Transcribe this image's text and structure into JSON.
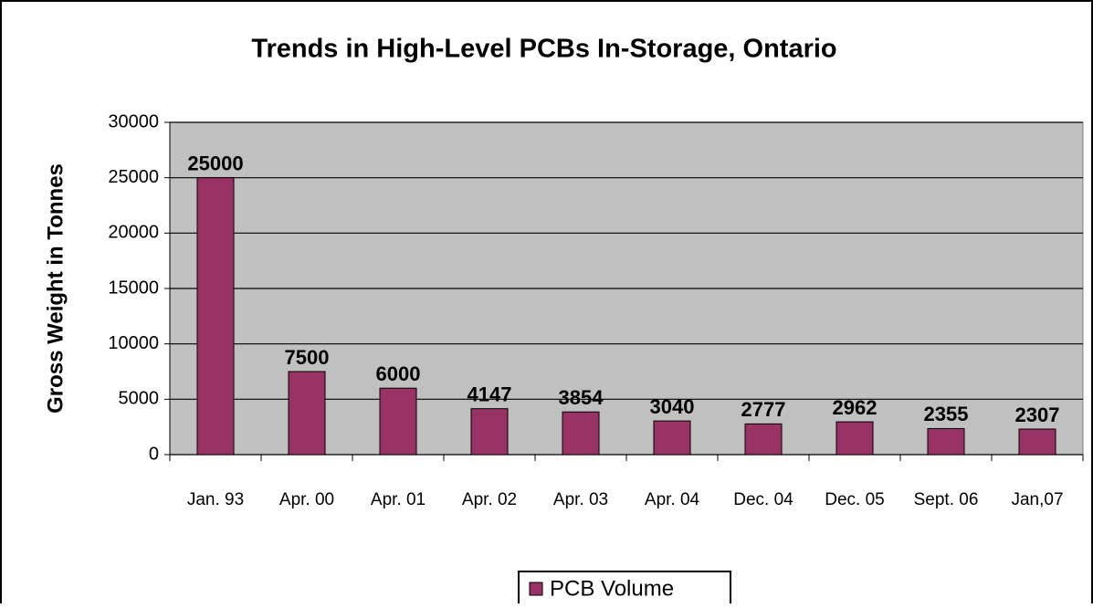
{
  "chart_data": {
    "type": "bar",
    "title": "Trends in High-Level PCBs In-Storage, Ontario",
    "y_label": "Gross Weight in Tonnes",
    "categories": [
      "Jan. 93",
      "Apr. 00",
      "Apr. 01",
      "Apr. 02",
      "Apr. 03",
      "Apr. 04",
      "Dec. 04",
      "Dec. 05",
      "Sept. 06",
      "Jan,07"
    ],
    "series": [
      {
        "name": "PCB Volume",
        "color": "#993366",
        "values": [
          25000,
          7500,
          6000,
          4147,
          3854,
          3040,
          2777,
          2962,
          2355,
          2307
        ]
      }
    ],
    "ylim": [
      0,
      30000
    ],
    "yticks": [
      0,
      5000,
      10000,
      15000,
      20000,
      25000,
      30000
    ],
    "grid": true,
    "legend": "bottom"
  }
}
